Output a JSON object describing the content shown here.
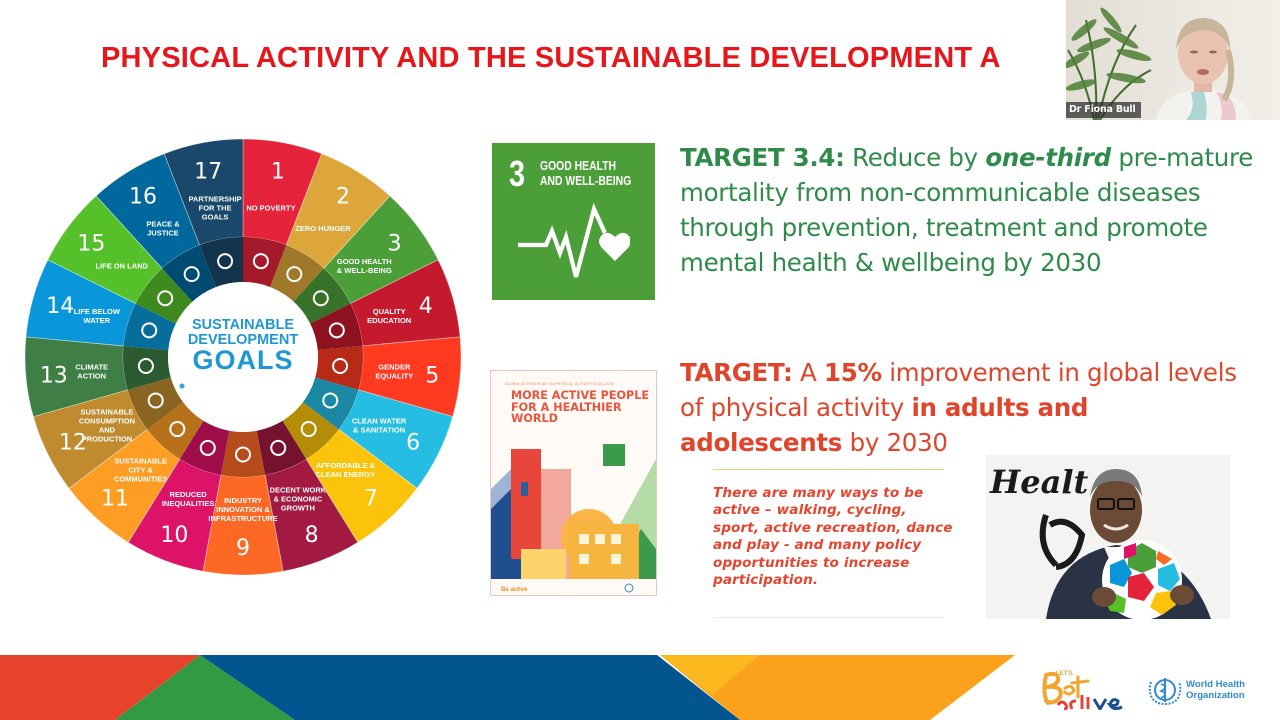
{
  "slide": {
    "title": "PHYSICAL ACTIVITY AND THE SUSTAINABLE DEVELOPMENT A",
    "title_color": "#e8161b"
  },
  "webcam": {
    "participant_name": "Dr Fiona Bull"
  },
  "sdg_wheel": {
    "center_line1": "SUSTAINABLE",
    "center_line2": "DEVELOPMENT",
    "center_line3": "GOALS",
    "goals": [
      {
        "number": "1",
        "label": "NO POVERTY",
        "color": "#e5243b",
        "icon": "family-icon"
      },
      {
        "number": "2",
        "label": "ZERO HUNGER",
        "color": "#dda63a",
        "icon": "bowl-icon"
      },
      {
        "number": "3",
        "label": "GOOD HEALTH & WELL-BEING",
        "color": "#4c9f38",
        "icon": "heartbeat-icon"
      },
      {
        "number": "4",
        "label": "QUALITY EDUCATION",
        "color": "#c5192d",
        "icon": "book-icon"
      },
      {
        "number": "5",
        "label": "GENDER EQUALITY",
        "color": "#ff3a21",
        "icon": "gender-icon"
      },
      {
        "number": "6",
        "label": "CLEAN WATER & SANITATION",
        "color": "#26bde2",
        "icon": "water-drop-icon"
      },
      {
        "number": "7",
        "label": "AFFORDABLE & CLEAN ENERGY",
        "color": "#fcc30b",
        "icon": "sun-icon"
      },
      {
        "number": "8",
        "label": "DECENT WORK & ECONOMIC GROWTH",
        "color": "#a21942",
        "icon": "growth-chart-icon"
      },
      {
        "number": "9",
        "label": "INDUSTRY INNOVATION & INFRASTRUCTURE",
        "color": "#fd6925",
        "icon": "cubes-icon"
      },
      {
        "number": "10",
        "label": "REDUCED INEQUALITIES",
        "color": "#dd1367",
        "icon": "equal-icon"
      },
      {
        "number": "11",
        "label": "SUSTAINABLE CITY & COMMUNITIES",
        "color": "#fd9d24",
        "icon": "city-icon"
      },
      {
        "number": "12",
        "label": "SUSTAINABLE CONSUMPTION AND PRODUCTION",
        "color": "#bf8b2e",
        "icon": "infinity-icon"
      },
      {
        "number": "13",
        "label": "CLIMATE ACTION",
        "color": "#3f7e44",
        "icon": "eye-globe-icon"
      },
      {
        "number": "14",
        "label": "LIFE BELOW WATER",
        "color": "#0a97d9",
        "icon": "fish-icon"
      },
      {
        "number": "15",
        "label": "LIFE ON LAND",
        "color": "#56c02b",
        "icon": "tree-icon"
      },
      {
        "number": "16",
        "label": "PEACE & JUSTICE",
        "color": "#00689d",
        "icon": "dove-icon"
      },
      {
        "number": "17",
        "label": "PARTNERSHIP FOR THE GOALS",
        "color": "#19486a",
        "icon": "rings-icon"
      }
    ]
  },
  "sdg3_tile": {
    "number": "3",
    "label_line1": "GOOD HEALTH",
    "label_line2": "AND WELL-BEING",
    "color": "#4c9f38"
  },
  "target_34": {
    "lead": "TARGET 3.4:",
    "text1": " Reduce by ",
    "emphasis": "one-third",
    "text2": " pre-mature mortality from non-communicable diseases through prevention, treatment and promote mental health & wellbeing by 2030",
    "color": "#2e8b4a"
  },
  "target_pa": {
    "lead": "TARGET:",
    "text1": " A ",
    "bold1": "15%",
    "text2": " improvement in global levels of physical activity ",
    "bold2": "in adults and adolescents",
    "text3": " by 2030",
    "color": "#e0452b"
  },
  "quote": {
    "text": "There are many ways to be active – walking, cycling, sport, active recreation, dance and play - and many policy opportunities to increase participation."
  },
  "report_cover": {
    "kicker": "GLOBAL ACTION PLAN ON PHYSICAL ACTIVITY 2018–2030",
    "title": "MORE ACTIVE PEOPLE FOR A HEALTHIER WORLD"
  },
  "photo": {
    "wall_text": "Healt"
  },
  "footer": {
    "band_colors": [
      "#e8432d",
      "#339a44",
      "#02558f",
      "#fba11b"
    ],
    "bea_lets": "LET'S",
    "bea_main": "Be active",
    "who_line1": "World Health",
    "who_line2": "Organization"
  }
}
